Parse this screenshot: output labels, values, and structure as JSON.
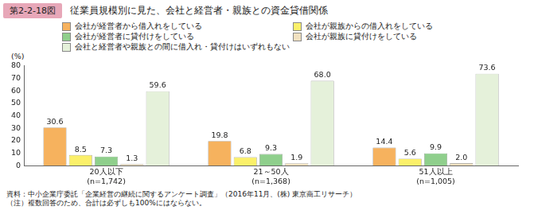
{
  "chart_data": {
    "type": "bar",
    "figure_label": "第2-2-18図",
    "title": "従業員規模別に見た、会社と経営者・親族との資金貸借関係",
    "y_label": "(%)",
    "categories": [
      [
        "20人以下",
        "(n=1,742)"
      ],
      [
        "21～50人",
        "(n=1,368)"
      ],
      [
        "51人以上",
        "(n=1,005)"
      ]
    ],
    "series": [
      {
        "name": "会社が経営者から借入れをしている",
        "color": "#f6b25e",
        "values": [
          30.6,
          19.8,
          14.4
        ],
        "value_labels": [
          "30.6",
          "19.8",
          "14.4"
        ]
      },
      {
        "name": "会社が親族からの借入れをしている",
        "color": "#fbf06a",
        "values": [
          8.5,
          6.8,
          5.6
        ],
        "value_labels": [
          "8.5",
          "6.8",
          "5.6"
        ]
      },
      {
        "name": "会社が経営者に貸付けをしている",
        "color": "#8fcf8c",
        "values": [
          7.3,
          9.3,
          9.9
        ],
        "value_labels": [
          "7.3",
          "9.3",
          "9.9"
        ]
      },
      {
        "name": "会社が親族に貸付けをしている",
        "color": "#f1e1c0",
        "values": [
          1.3,
          1.9,
          2.0
        ],
        "value_labels": [
          "1.3",
          "1.9",
          "2.0"
        ]
      },
      {
        "name": "会社と経営者や親族との間に借入れ・貸付けはいずれもない",
        "color": "#e5f1da",
        "values": [
          59.6,
          68.0,
          73.6
        ],
        "value_labels": [
          "59.6",
          "68.0",
          "73.6"
        ]
      }
    ],
    "ylim": [
      0,
      80
    ],
    "yticks": [
      0,
      10,
      20,
      30,
      40,
      50,
      60,
      70,
      80
    ],
    "grid": false,
    "legend": "top",
    "data_labels": true,
    "source": "資料：中小企業庁委託「企業経営の継続に関するアンケート調査」（2016年11月、(株) 東京商工リサーチ）",
    "note": "（注）複数回答のため、合計は必ずしも100%にはならない。"
  }
}
